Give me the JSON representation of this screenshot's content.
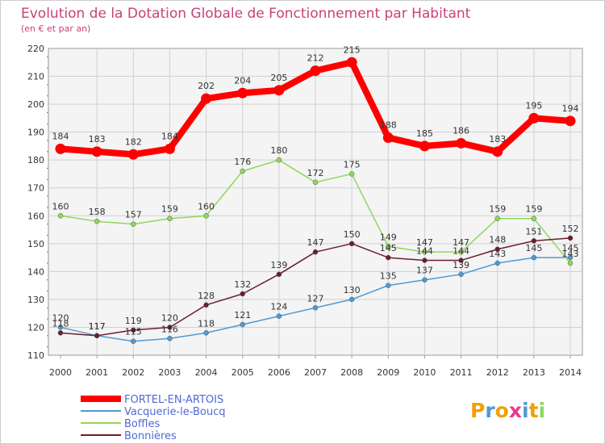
{
  "chart_data": {
    "type": "line",
    "title": "Evolution de la Dotation Globale de Fonctionnement par Habitant",
    "subtitle": "(en € et par an)",
    "xlabel": "",
    "ylabel": "",
    "categories": [
      "2000",
      "2001",
      "2002",
      "2003",
      "2004",
      "2005",
      "2006",
      "2007",
      "2008",
      "2009",
      "2010",
      "2011",
      "2012",
      "2013",
      "2014"
    ],
    "yticks": [
      "110",
      "120",
      "130",
      "140",
      "150",
      "160",
      "170",
      "180",
      "190",
      "200",
      "210",
      "220"
    ],
    "ylim": [
      110,
      220
    ],
    "grid": true,
    "legend": "bottom-left",
    "series": [
      {
        "name": "FORTEL-EN-ARTOIS",
        "color": "#ff0000",
        "values": [
          184,
          183,
          182,
          184,
          202,
          204,
          205,
          212,
          215,
          188,
          185,
          186,
          183,
          195,
          194
        ],
        "labels": [
          "184",
          "183",
          "182",
          "184",
          "202",
          "204",
          "205",
          "212",
          "215",
          "188",
          "185",
          "186",
          "183",
          "195",
          "194"
        ]
      },
      {
        "name": "Vacquerie-le-Boucq",
        "color": "#4f9ad4",
        "values": [
          120,
          117,
          115,
          116,
          118,
          121,
          124,
          127,
          130,
          135,
          137,
          139,
          143,
          145,
          145
        ],
        "labels": [
          "120",
          "117",
          "115",
          "116",
          "118",
          "121",
          "124",
          "127",
          "130",
          "135",
          "137",
          "139",
          "143",
          "145",
          "145"
        ]
      },
      {
        "name": "Boffles",
        "color": "#8fd85a",
        "values": [
          160,
          158,
          157,
          159,
          160,
          176,
          180,
          172,
          175,
          149,
          147,
          147,
          159,
          159,
          143
        ],
        "labels": [
          "160",
          "158",
          "157",
          "159",
          "160",
          "176",
          "180",
          "172",
          "175",
          "149",
          "147",
          "147",
          "159",
          "159",
          "143"
        ]
      },
      {
        "name": "Bonnières",
        "color": "#6b1e2a",
        "values": [
          118,
          117,
          119,
          120,
          128,
          132,
          139,
          147,
          150,
          145,
          144,
          144,
          148,
          151,
          152
        ],
        "labels": [
          "118",
          "117",
          "119",
          "120",
          "128",
          "132",
          "139",
          "147",
          "150",
          "145",
          "144",
          "144",
          "148",
          "151",
          "152"
        ]
      }
    ]
  },
  "legend_text_color": "#4f6ad4",
  "logo": {
    "text": "Proxiti",
    "letters": [
      "P",
      "r",
      "o",
      "x",
      "i",
      "t",
      "i"
    ],
    "colors": [
      "#f0a000",
      "#4f9ad4",
      "#f0a000",
      "#e83a8a",
      "#4f9ad4",
      "#f0a000",
      "#8fd85a"
    ]
  }
}
